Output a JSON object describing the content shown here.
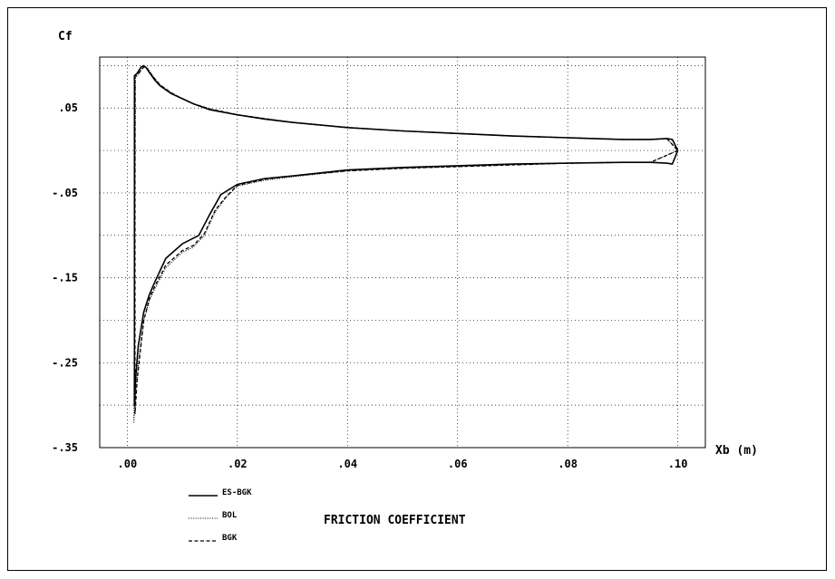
{
  "chart_data": {
    "type": "line",
    "title": "FRICTION COEFFICIENT",
    "xlabel": "Xb (m)",
    "ylabel": "Cf",
    "xlim": [
      -0.005,
      0.105
    ],
    "ylim": [
      -0.35,
      0.11
    ],
    "x_ticks": [
      0.0,
      0.02,
      0.04,
      0.06,
      0.08,
      0.1
    ],
    "x_tick_labels": [
      ".00",
      ".02",
      ".04",
      ".06",
      ".08",
      ".10"
    ],
    "y_ticks": [
      0.05,
      -0.05,
      -0.15,
      -0.25,
      -0.35
    ],
    "y_tick_labels": [
      ".05",
      "-.05",
      "-.15",
      "-.25",
      "-.35"
    ],
    "grid": true,
    "legend_position": "below-left",
    "series": [
      {
        "name": "ES-BGK",
        "style": "solid",
        "upper": {
          "x": [
            0.0013,
            0.0018,
            0.0025,
            0.003,
            0.0035,
            0.004,
            0.005,
            0.006,
            0.008,
            0.01,
            0.012,
            0.015,
            0.02,
            0.025,
            0.03,
            0.04,
            0.05,
            0.06,
            0.07,
            0.08,
            0.09,
            0.095,
            0.098,
            0.099,
            0.1
          ],
          "y": [
            0.088,
            0.091,
            0.098,
            0.1,
            0.097,
            0.092,
            0.083,
            0.076,
            0.067,
            0.061,
            0.055,
            0.048,
            0.042,
            0.037,
            0.033,
            0.027,
            0.023,
            0.02,
            0.017,
            0.015,
            0.013,
            0.013,
            0.014,
            0.013,
            0.0
          ]
        },
        "lower": {
          "x": [
            0.0013,
            0.0015,
            0.002,
            0.003,
            0.004,
            0.005,
            0.007,
            0.01,
            0.013,
            0.015,
            0.017,
            0.02,
            0.025,
            0.03,
            0.04,
            0.05,
            0.06,
            0.07,
            0.08,
            0.09,
            0.095,
            0.098,
            0.099,
            0.1
          ],
          "y": [
            -0.3,
            -0.27,
            -0.23,
            -0.19,
            -0.17,
            -0.155,
            -0.127,
            -0.11,
            -0.1,
            -0.075,
            -0.052,
            -0.04,
            -0.033,
            -0.03,
            -0.023,
            -0.02,
            -0.018,
            -0.016,
            -0.015,
            -0.014,
            -0.014,
            -0.015,
            -0.016,
            0.0
          ]
        }
      },
      {
        "name": "BOL",
        "style": "dotted",
        "upper": {
          "x": [
            0.0015,
            0.0025,
            0.003,
            0.0035,
            0.004,
            0.005,
            0.006,
            0.008,
            0.01,
            0.012,
            0.015,
            0.02,
            0.03,
            0.04,
            0.05,
            0.06,
            0.07,
            0.08,
            0.09,
            0.095,
            0.098,
            0.1
          ],
          "y": [
            0.085,
            0.095,
            0.099,
            0.098,
            0.094,
            0.085,
            0.077,
            0.068,
            0.061,
            0.055,
            0.049,
            0.042,
            0.033,
            0.027,
            0.023,
            0.02,
            0.017,
            0.015,
            0.013,
            0.013,
            0.014,
            0.0
          ]
        },
        "lower": {
          "x": [
            0.0012,
            0.0016,
            0.0022,
            0.003,
            0.004,
            0.005,
            0.007,
            0.01,
            0.012,
            0.014,
            0.016,
            0.018,
            0.02,
            0.025,
            0.03,
            0.04,
            0.05,
            0.06,
            0.07,
            0.08,
            0.09,
            0.095,
            0.1
          ],
          "y": [
            -0.32,
            -0.28,
            -0.24,
            -0.2,
            -0.177,
            -0.163,
            -0.138,
            -0.12,
            -0.114,
            -0.1,
            -0.072,
            -0.055,
            -0.042,
            -0.035,
            -0.031,
            -0.024,
            -0.021,
            -0.019,
            -0.017,
            -0.015,
            -0.014,
            -0.014,
            0.0
          ]
        }
      },
      {
        "name": "BGK",
        "style": "dashed",
        "upper": {
          "x": [
            0.0014,
            0.002,
            0.0028,
            0.0032,
            0.0037,
            0.0045,
            0.006,
            0.008,
            0.01,
            0.012,
            0.015,
            0.02,
            0.03,
            0.04,
            0.05,
            0.06,
            0.07,
            0.08,
            0.09,
            0.095,
            0.098,
            0.1
          ],
          "y": [
            0.087,
            0.09,
            0.097,
            0.099,
            0.096,
            0.088,
            0.077,
            0.068,
            0.061,
            0.055,
            0.049,
            0.042,
            0.033,
            0.027,
            0.023,
            0.02,
            0.017,
            0.015,
            0.013,
            0.013,
            0.014,
            0.0
          ]
        },
        "lower": {
          "x": [
            0.0014,
            0.0018,
            0.0024,
            0.003,
            0.004,
            0.005,
            0.007,
            0.01,
            0.012,
            0.014,
            0.016,
            0.018,
            0.02,
            0.025,
            0.03,
            0.04,
            0.05,
            0.06,
            0.07,
            0.08,
            0.09,
            0.095,
            0.1
          ],
          "y": [
            -0.31,
            -0.27,
            -0.235,
            -0.2,
            -0.175,
            -0.16,
            -0.135,
            -0.118,
            -0.112,
            -0.098,
            -0.07,
            -0.054,
            -0.041,
            -0.034,
            -0.03,
            -0.024,
            -0.021,
            -0.019,
            -0.017,
            -0.015,
            -0.014,
            -0.014,
            0.0
          ]
        }
      }
    ]
  }
}
